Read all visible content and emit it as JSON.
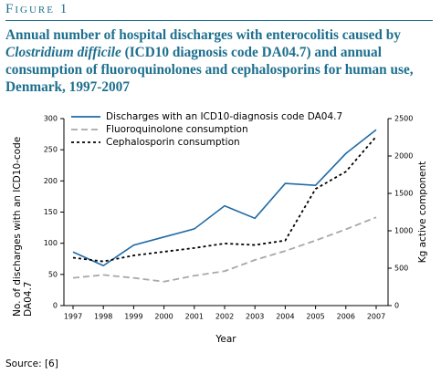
{
  "chart_data": {
    "type": "line",
    "figure_label": "Figure 1",
    "title": [
      "Annual number of hospital discharges with enterocolitis caused by ",
      "Clostridium difficile",
      " (ICD10 diagnosis code DA04.7) and annual consumption of fluoroquinolones and cephalosporins for human use, Denmark, 1997-2007"
    ],
    "x": [
      1997,
      1998,
      1999,
      2000,
      2001,
      2002,
      2003,
      2004,
      2005,
      2006,
      2007
    ],
    "xlim": [
      1997,
      2007
    ],
    "xticks": [
      1997,
      1998,
      1999,
      2000,
      2001,
      2002,
      2003,
      2004,
      2005,
      2006,
      2007
    ],
    "xlabel": "Year",
    "ylabel": "No. of discharges with an ICD10-code DA04.7",
    "ylim": [
      0,
      300
    ],
    "yticks": [
      0,
      50,
      100,
      150,
      200,
      250,
      300
    ],
    "y2label": "Kg active component",
    "y2lim": [
      0,
      2500
    ],
    "y2ticks": [
      0,
      500,
      1000,
      1500,
      2000,
      2500
    ],
    "grid": false,
    "legend": "upper left",
    "series": [
      {
        "name": "Discharges with an ICD10-diagnosis code DA04.7",
        "color": "#1f6aa5",
        "dash": "solid",
        "axis": "y",
        "values": [
          86,
          64,
          97,
          110,
          123,
          160,
          140,
          196,
          193,
          244,
          282
        ]
      },
      {
        "name": "Fluoroquinolone consumption",
        "color": "#a8a8a8",
        "dash": "dashed",
        "axis": "y2",
        "values": [
          370,
          410,
          370,
          320,
          400,
          460,
          610,
          730,
          870,
          1020,
          1180
        ]
      },
      {
        "name": "Cephalosporin consumption",
        "color": "#000000",
        "dash": "dotted",
        "axis": "y2",
        "values": [
          640,
          590,
          670,
          720,
          770,
          830,
          810,
          870,
          1560,
          1790,
          2260
        ]
      }
    ],
    "source": "Source: [6]"
  }
}
